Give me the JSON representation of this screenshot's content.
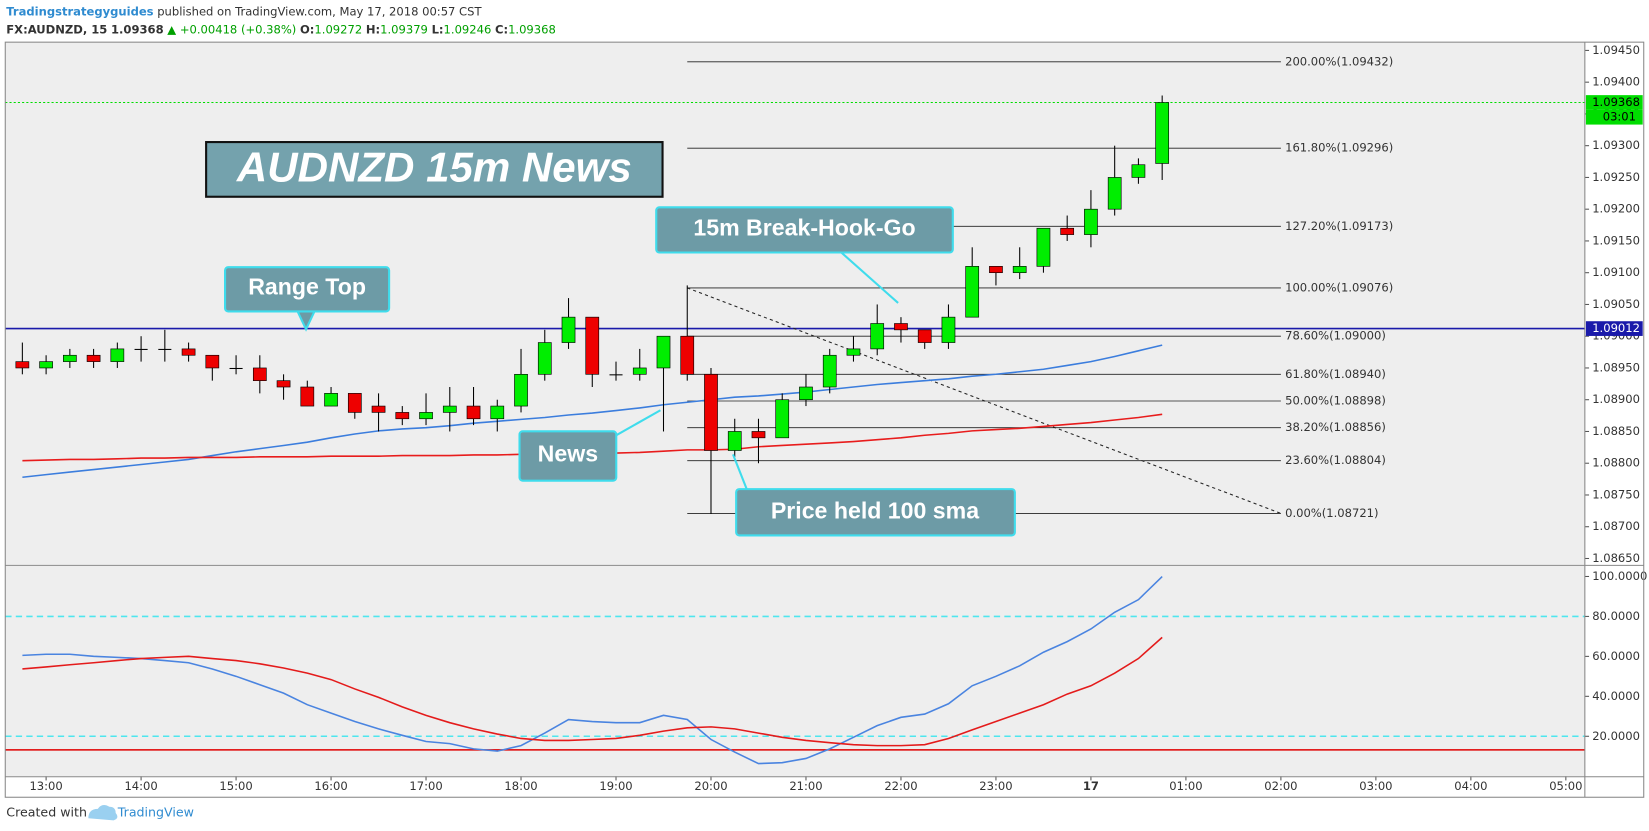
{
  "header": {
    "author": "Tradingstrategyguides",
    "published": "published on TradingView.com, May 17, 2018 00:57 CST",
    "symbol": "FX:AUDNZD, 15",
    "last": "1.09368",
    "change": "+0.00418 (+0.38%)",
    "ohlc": [
      {
        "label": "O:",
        "value": "1.09272"
      },
      {
        "label": "H:",
        "value": "1.09379"
      },
      {
        "label": "L:",
        "value": "1.09246"
      },
      {
        "label": "C:",
        "value": "1.09368"
      }
    ]
  },
  "annotations": {
    "title": "AUDNZD 15m News",
    "range_top": "Range Top",
    "break_hook": "15m Break-Hook-Go",
    "news": "News",
    "held": "Price held 100 sma"
  },
  "chart_data": [
    {
      "type": "candlestick",
      "up_color": "#00ee00",
      "down_color": "#ee0000",
      "x": [
        -0.25,
        0,
        0.25,
        0.5,
        0.75,
        1,
        1.25,
        1.5,
        1.75,
        2,
        2.25,
        2.5,
        2.75,
        3,
        3.25,
        3.5,
        3.75,
        4,
        4.25,
        4.5,
        4.75,
        5,
        5.25,
        5.5,
        5.75,
        6,
        6.25,
        6.5,
        6.75,
        7,
        7.25,
        7.5,
        7.75,
        8,
        8.25,
        8.5,
        8.75,
        9,
        9.25,
        9.5,
        9.75,
        10,
        10.25,
        10.5,
        10.75,
        11,
        11.25,
        11.5,
        11.75
      ],
      "open": [
        1.0896,
        1.0895,
        1.0896,
        1.0897,
        1.0896,
        1.0898,
        1.0898,
        1.0898,
        1.0897,
        1.0895,
        1.0895,
        1.0893,
        1.0892,
        1.0889,
        1.0891,
        1.0889,
        1.0888,
        1.0887,
        1.0888,
        1.0889,
        1.0887,
        1.0889,
        1.0894,
        1.0899,
        1.0903,
        1.0894,
        1.0894,
        1.0895,
        1.09,
        1.0894,
        1.0882,
        1.0885,
        1.0884,
        1.089,
        1.0892,
        1.0897,
        1.0898,
        1.0902,
        1.0901,
        1.0899,
        1.0903,
        1.0911,
        1.091,
        1.0911,
        1.0917,
        1.0916,
        1.092,
        1.0925,
        1.09272
      ],
      "high": [
        1.0899,
        1.0897,
        1.0898,
        1.0898,
        1.0899,
        1.09,
        1.0901,
        1.0899,
        1.0897,
        1.0897,
        1.0897,
        1.0894,
        1.0893,
        1.0892,
        1.0891,
        1.0891,
        1.0889,
        1.0891,
        1.0892,
        1.0892,
        1.089,
        1.0898,
        1.0901,
        1.0906,
        1.0903,
        1.0896,
        1.0898,
        1.09,
        1.0908,
        1.0895,
        1.0887,
        1.0887,
        1.0891,
        1.0894,
        1.0898,
        1.09,
        1.0905,
        1.0903,
        1.0901,
        1.0905,
        1.0914,
        1.0911,
        1.0914,
        1.0917,
        1.0919,
        1.0923,
        1.093,
        1.0928,
        1.09379
      ],
      "low": [
        1.0894,
        1.0894,
        1.0895,
        1.0895,
        1.0895,
        1.0896,
        1.0896,
        1.0896,
        1.0893,
        1.0894,
        1.0891,
        1.089,
        1.0889,
        1.0889,
        1.0887,
        1.0885,
        1.0886,
        1.0886,
        1.0885,
        1.0886,
        1.0885,
        1.0888,
        1.0893,
        1.0898,
        1.0892,
        1.0893,
        1.0893,
        1.0885,
        1.0893,
        1.0872,
        1.0881,
        1.088,
        1.0884,
        1.0889,
        1.0891,
        1.0896,
        1.0897,
        1.0899,
        1.0898,
        1.0898,
        1.0903,
        1.0908,
        1.0909,
        1.091,
        1.0915,
        1.0914,
        1.0919,
        1.0924,
        1.09246
      ],
      "close": [
        1.0895,
        1.0896,
        1.0897,
        1.0896,
        1.0898,
        1.0898,
        1.0898,
        1.0897,
        1.0895,
        1.0895,
        1.0893,
        1.0892,
        1.0889,
        1.0891,
        1.0888,
        1.0888,
        1.0887,
        1.0888,
        1.0889,
        1.0887,
        1.0889,
        1.0894,
        1.0899,
        1.0903,
        1.0894,
        1.0894,
        1.0895,
        1.09,
        1.0894,
        1.0882,
        1.0885,
        1.0884,
        1.089,
        1.0892,
        1.0897,
        1.0898,
        1.0902,
        1.0901,
        1.0899,
        1.0903,
        1.0911,
        1.091,
        1.0911,
        1.0917,
        1.0916,
        1.092,
        1.0925,
        1.0927,
        1.09368
      ],
      "lines": [
        {
          "color": "#3b7ddd",
          "values": [
            1.08778,
            1.08782,
            1.08786,
            1.0879,
            1.08794,
            1.08798,
            1.08802,
            1.08806,
            1.08812,
            1.08818,
            1.08823,
            1.08828,
            1.08833,
            1.0884,
            1.08846,
            1.08851,
            1.08854,
            1.08856,
            1.08859,
            1.08863,
            1.08866,
            1.08869,
            1.08872,
            1.08876,
            1.08879,
            1.08883,
            1.08887,
            1.08892,
            1.08896,
            1.089,
            1.08904,
            1.08906,
            1.08909,
            1.08912,
            1.08916,
            1.0892,
            1.08924,
            1.08927,
            1.0893,
            1.08933,
            1.08937,
            1.0894,
            1.08944,
            1.08948,
            1.08954,
            1.0896,
            1.08968,
            1.08977,
            1.08986
          ]
        },
        {
          "color": "#e81c1c",
          "values": [
            1.08804,
            1.08805,
            1.08806,
            1.08806,
            1.08807,
            1.08808,
            1.08808,
            1.08809,
            1.08809,
            1.08809,
            1.0881,
            1.0881,
            1.0881,
            1.08811,
            1.08811,
            1.08811,
            1.08812,
            1.08812,
            1.08812,
            1.08813,
            1.08813,
            1.08814,
            1.08815,
            1.08815,
            1.08816,
            1.08816,
            1.08817,
            1.08819,
            1.08821,
            1.08821,
            1.08822,
            1.08826,
            1.08828,
            1.0883,
            1.08832,
            1.08834,
            1.08837,
            1.0884,
            1.08844,
            1.08847,
            1.08851,
            1.08853,
            1.08855,
            1.08858,
            1.08861,
            1.08864,
            1.08868,
            1.08872,
            1.08877
          ]
        }
      ],
      "xlim": [
        -0.43,
        16.2
      ],
      "ylim": [
        1.0864,
        1.09463
      ],
      "yticks": [
        {
          "value": 1.0865,
          "label": "1.08650"
        },
        {
          "value": 1.087,
          "label": "1.08700"
        },
        {
          "value": 1.0875,
          "label": "1.08750"
        },
        {
          "value": 1.088,
          "label": "1.08800"
        },
        {
          "value": 1.0885,
          "label": "1.08850"
        },
        {
          "value": 1.089,
          "label": "1.08900"
        },
        {
          "value": 1.0895,
          "label": "1.08950"
        },
        {
          "value": 1.09,
          "label": "1.09000"
        },
        {
          "value": 1.0905,
          "label": "1.09050"
        },
        {
          "value": 1.091,
          "label": "1.09100"
        },
        {
          "value": 1.0915,
          "label": "1.09150"
        },
        {
          "value": 1.092,
          "label": "1.09200"
        },
        {
          "value": 1.0925,
          "label": "1.09250"
        },
        {
          "value": 1.093,
          "label": "1.09300"
        },
        {
          "value": 1.0935,
          "label": "1.09350"
        },
        {
          "value": 1.094,
          "label": "1.09400"
        },
        {
          "value": 1.0945,
          "label": "1.09450"
        }
      ],
      "hlines": [
        {
          "value": 1.09012,
          "label": "1.09012",
          "color": "#1a1aaa",
          "style": "solid"
        },
        {
          "value": 1.09368,
          "label": "1.09368",
          "sublabel": "03:01",
          "color": "#00dd00",
          "style": "dotted"
        }
      ],
      "fib": {
        "x": [
          6.75,
          13
        ],
        "levels": [
          {
            "label": "200.00%(1.09432)",
            "value": 1.09432
          },
          {
            "label": "161.80%(1.09296)",
            "value": 1.09296
          },
          {
            "label": "127.20%(1.09173)",
            "value": 1.09173
          },
          {
            "label": "100.00%(1.09076)",
            "value": 1.09076
          },
          {
            "label": "78.60%(1.09000)",
            "value": 1.09
          },
          {
            "label": "61.80%(1.08940)",
            "value": 1.0894
          },
          {
            "label": "50.00%(1.08898)",
            "value": 1.08898
          },
          {
            "label": "38.20%(1.08856)",
            "value": 1.08856
          },
          {
            "label": "23.60%(1.08804)",
            "value": 1.08804
          },
          {
            "label": "0.00%(1.08721)",
            "value": 1.08721
          }
        ]
      }
    },
    {
      "type": "line",
      "x": [
        -0.25,
        0,
        0.25,
        0.5,
        0.75,
        1,
        1.25,
        1.5,
        1.75,
        2,
        2.25,
        2.5,
        2.75,
        3,
        3.25,
        3.5,
        3.75,
        4,
        4.25,
        4.5,
        4.75,
        5,
        5.25,
        5.5,
        5.75,
        6,
        6.25,
        6.5,
        6.75,
        7,
        7.25,
        7.5,
        7.75,
        8,
        8.25,
        8.5,
        8.75,
        9,
        9.25,
        9.5,
        9.75,
        10,
        10.25,
        10.5,
        10.75,
        11,
        11.25,
        11.5,
        11.75
      ],
      "series": [
        {
          "color": "#4a84e0",
          "values": [
            60.5,
            61.1,
            61.1,
            60,
            59.5,
            58.9,
            57.9,
            56.8,
            53.7,
            50,
            45.8,
            41.6,
            35.8,
            31.6,
            27.4,
            23.7,
            20.5,
            17.4,
            16.3,
            13.7,
            12.6,
            15.3,
            21.6,
            28.4,
            27.4,
            26.8,
            26.8,
            30.5,
            28.4,
            18.4,
            12.1,
            6.3,
            6.8,
            8.9,
            13.7,
            19.5,
            25.3,
            29.5,
            31.1,
            36.3,
            45.3,
            50,
            55.3,
            62.1,
            67.4,
            73.7,
            82.1,
            88.4,
            100
          ]
        },
        {
          "color": "#e41b1b",
          "values": [
            53.7,
            54.7,
            55.8,
            56.8,
            57.9,
            58.9,
            59.5,
            60,
            58.9,
            57.9,
            56.3,
            54.2,
            51.6,
            48.4,
            43.7,
            39.5,
            34.7,
            30.5,
            26.8,
            23.7,
            21.1,
            18.9,
            17.9,
            17.9,
            18.4,
            18.9,
            20.5,
            22.6,
            24.2,
            24.7,
            23.7,
            21.6,
            19.5,
            17.9,
            16.8,
            15.8,
            15.3,
            15.3,
            15.8,
            18.9,
            23.2,
            27.4,
            31.6,
            35.8,
            41.1,
            45.3,
            51.6,
            58.9,
            69.5
          ]
        }
      ],
      "xlim": [
        -0.43,
        16.2
      ],
      "ylim": [
        0,
        105.3
      ],
      "yticks": [
        {
          "value": 20,
          "label": "20.0000"
        },
        {
          "value": 40,
          "label": "40.0000"
        },
        {
          "value": 60,
          "label": "60.0000"
        },
        {
          "value": 80,
          "label": "80.0000"
        },
        {
          "value": 100,
          "label": "100.0000"
        }
      ],
      "hlines": [
        {
          "value": 80,
          "color": "#4ee6ee",
          "style": "dashed"
        },
        {
          "value": 20,
          "color": "#4ee6ee",
          "style": "dashed"
        },
        {
          "value": 13.2,
          "color": "#e00000",
          "style": "solid"
        }
      ],
      "xticks": [
        {
          "value": 0,
          "label": "13:00"
        },
        {
          "value": 1,
          "label": "14:00"
        },
        {
          "value": 2,
          "label": "15:00"
        },
        {
          "value": 3,
          "label": "16:00"
        },
        {
          "value": 4,
          "label": "17:00"
        },
        {
          "value": 5,
          "label": "18:00"
        },
        {
          "value": 6,
          "label": "19:00"
        },
        {
          "value": 7,
          "label": "20:00"
        },
        {
          "value": 8,
          "label": "21:00"
        },
        {
          "value": 9,
          "label": "22:00"
        },
        {
          "value": 10,
          "label": "23:00"
        },
        {
          "value": 11,
          "label": "17"
        },
        {
          "value": 12,
          "label": "01:00"
        },
        {
          "value": 13,
          "label": "02:00"
        },
        {
          "value": 14,
          "label": "03:00"
        },
        {
          "value": 15,
          "label": "04:00"
        },
        {
          "value": 16,
          "label": "05:00"
        }
      ]
    }
  ],
  "footer": {
    "created": "Created with",
    "brand": "TradingView"
  }
}
